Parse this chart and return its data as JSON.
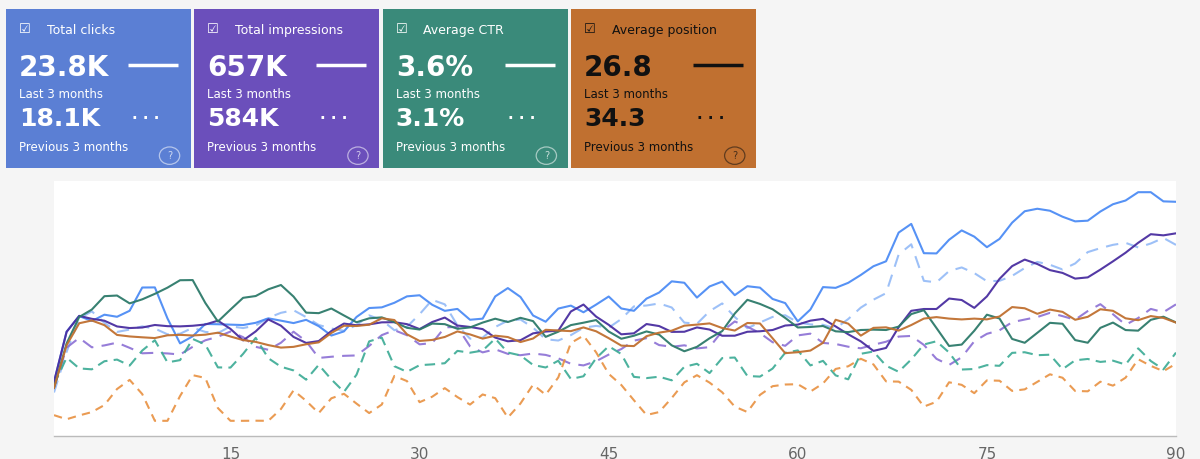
{
  "cards": [
    {
      "title": "Total clicks",
      "bg_color": "#5b7fd4",
      "title_color": "#ffffff",
      "current_value": "23.8K",
      "current_label": "Last 3 months",
      "prev_value": "18.1K",
      "prev_label": "Previous 3 months",
      "line_color": "#ffffff",
      "text_dark": false
    },
    {
      "title": "Total impressions",
      "bg_color": "#6b4fbb",
      "title_color": "#ffffff",
      "current_value": "657K",
      "current_label": "Last 3 months",
      "prev_value": "584K",
      "prev_label": "Previous 3 months",
      "line_color": "#ffffff",
      "text_dark": false
    },
    {
      "title": "Average CTR",
      "bg_color": "#3a8a7a",
      "title_color": "#ffffff",
      "current_value": "3.6%",
      "current_label": "Last 3 months",
      "prev_value": "3.1%",
      "prev_label": "Previous 3 months",
      "line_color": "#ffffff",
      "text_dark": false
    },
    {
      "title": "Average position",
      "bg_color": "#c07030",
      "title_color": "#111111",
      "current_value": "26.8",
      "current_label": "Last 3 months",
      "prev_value": "34.3",
      "prev_label": "Previous 3 months",
      "line_color": "#111111",
      "text_dark": true
    }
  ],
  "chart": {
    "bg_color": "#ffffff",
    "outer_bg": "#f5f5f5",
    "x_ticks": [
      15,
      30,
      45,
      60,
      75,
      90
    ],
    "x_min": 1,
    "x_max": 90,
    "line_colors": {
      "blue_solid": "#4d8cf5",
      "blue_dashed": "#93baf7",
      "purple_solid": "#4a2ea0",
      "purple_dashed": "#8b6fd4",
      "green_solid": "#2d7a6a",
      "green_dashed": "#3aaa94",
      "orange_solid": "#c07030",
      "orange_dashed": "#e89040"
    }
  }
}
